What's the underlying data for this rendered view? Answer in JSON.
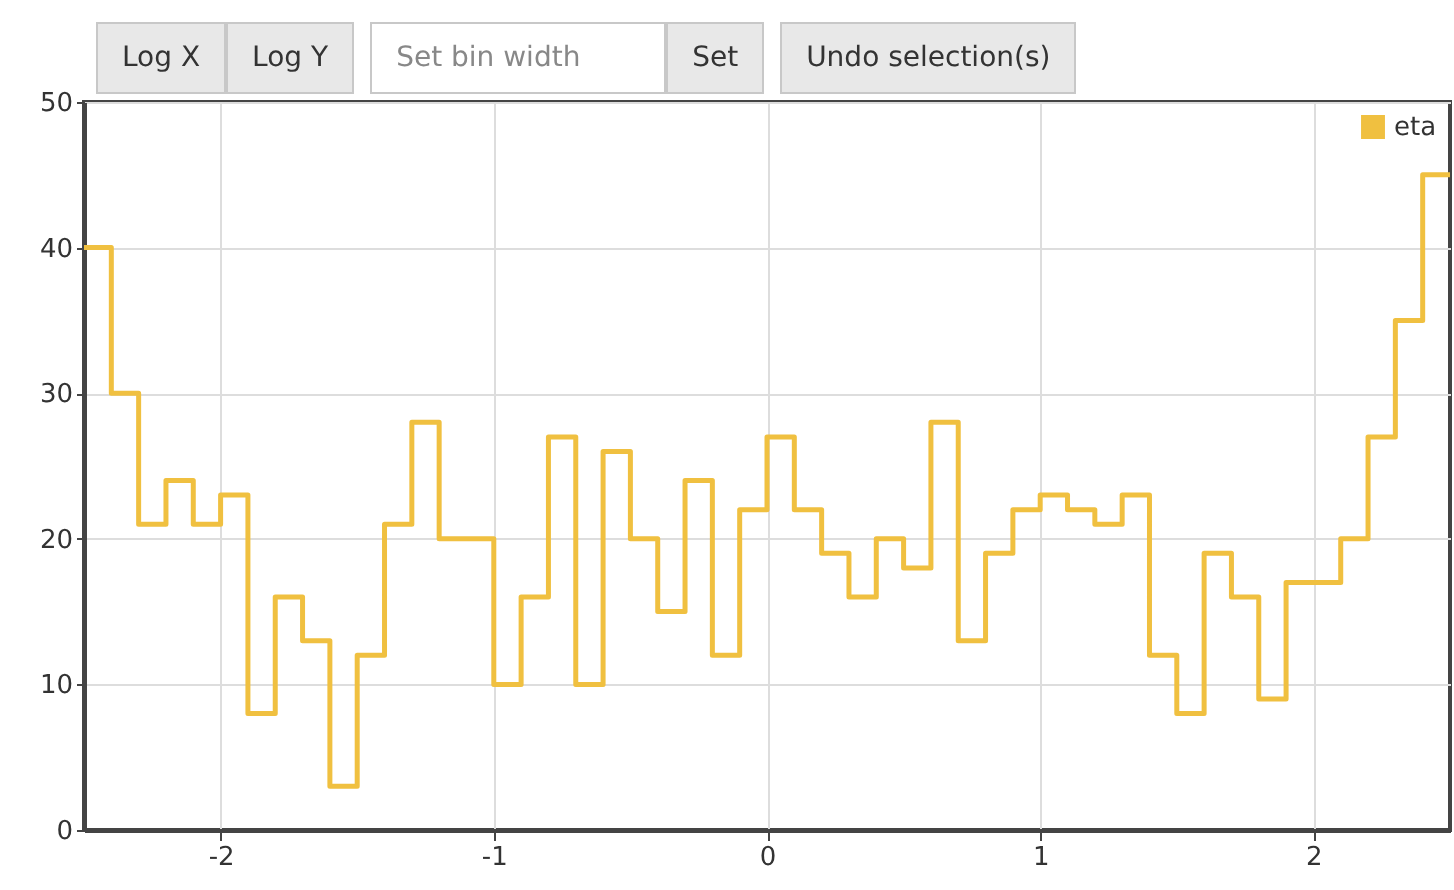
{
  "chart_data": {
    "type": "histogram",
    "bins": [
      -2.5,
      -2.4,
      -2.3,
      -2.2,
      -2.1,
      -2.0,
      -1.9,
      -1.8,
      -1.7,
      -1.6,
      -1.5,
      -1.4,
      -1.3,
      -1.2,
      -1.1,
      -1.0,
      -0.9,
      -0.8,
      -0.7,
      -0.6,
      -0.5,
      -0.4,
      -0.3,
      -0.2,
      -0.1,
      0,
      0.1,
      0.2,
      0.3,
      0.4,
      0.5,
      0.6,
      0.7,
      0.8,
      0.9,
      1.0,
      1.1,
      1.2,
      1.3,
      1.4,
      1.5,
      1.6,
      1.7,
      1.8,
      1.9,
      2.0,
      2.1,
      2.2,
      2.3,
      2.4,
      2.5
    ],
    "series": [
      {
        "name": "eta",
        "color": "#f0c040",
        "values": [
          40,
          30,
          21,
          24,
          21,
          23,
          8,
          16,
          13,
          3,
          12,
          21,
          28,
          20,
          20,
          10,
          16,
          27,
          10,
          26,
          20,
          15,
          24,
          12,
          22,
          27,
          22,
          19,
          16,
          20,
          18,
          28,
          13,
          19,
          22,
          23,
          22,
          21,
          23,
          12,
          8,
          19,
          16,
          9,
          17,
          17,
          20,
          27,
          35,
          45
        ]
      }
    ],
    "xlim": [
      -2.5,
      2.5
    ],
    "xticks": [
      -2,
      -1,
      0,
      1,
      2
    ],
    "ylim": [
      0,
      50
    ],
    "yticks": [
      0,
      10,
      20,
      30,
      40,
      50
    ],
    "grid": true,
    "legend": "top right",
    "annotations": [
      "Log X",
      "Log Y",
      "Set bin width",
      "Set",
      "Undo selection(s)"
    ]
  }
}
